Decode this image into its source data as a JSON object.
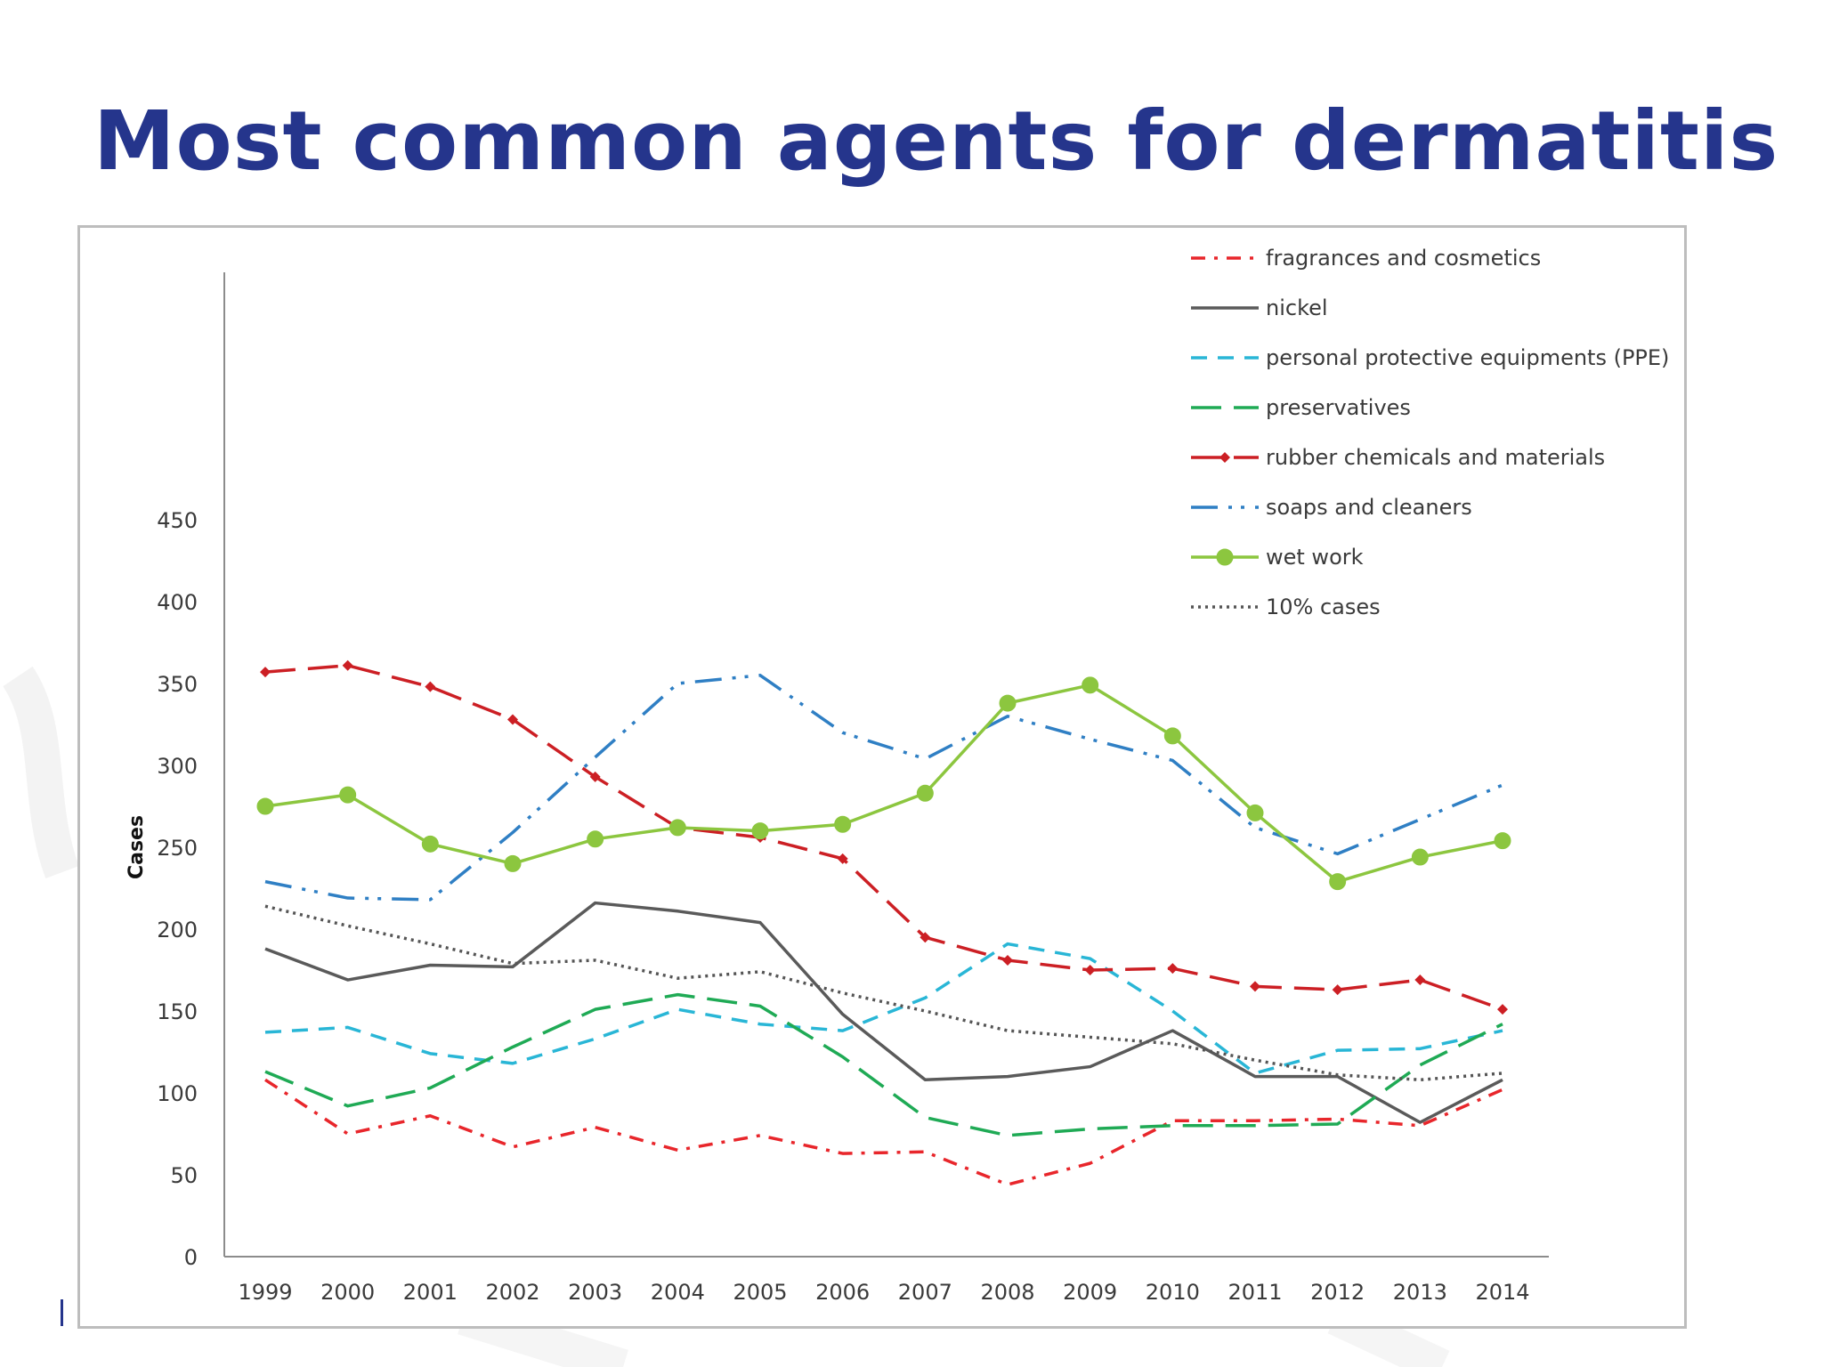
{
  "slide": {
    "title": "Most common agents for dermatitis"
  },
  "chart_data": {
    "type": "line",
    "title": "",
    "xlabel": "",
    "ylabel": "Cases",
    "ylim": [
      0,
      480
    ],
    "yticks": [
      0,
      50,
      100,
      150,
      200,
      250,
      300,
      350,
      400,
      450
    ],
    "grid": false,
    "legend_position": "top-right",
    "categories": [
      "1999",
      "2000",
      "2001",
      "2002",
      "2003",
      "2004",
      "2005",
      "2006",
      "2007",
      "2008",
      "2009",
      "2010",
      "2011",
      "2012",
      "2013",
      "2014"
    ],
    "series": [
      {
        "name": "fragrances and cosmetics",
        "color": "#e8262b",
        "style": "dash-dot",
        "marker": "none",
        "values": [
          108,
          75,
          86,
          67,
          79,
          65,
          74,
          63,
          64,
          44,
          57,
          83,
          83,
          84,
          80,
          102
        ]
      },
      {
        "name": "nickel",
        "color": "#5a5a5a",
        "style": "solid",
        "marker": "none",
        "values": [
          188,
          169,
          178,
          177,
          216,
          211,
          204,
          148,
          108,
          110,
          116,
          138,
          110,
          110,
          82,
          108
        ]
      },
      {
        "name": "personal protective equipments (PPE)",
        "color": "#29b6d6",
        "style": "dash",
        "marker": "none",
        "values": [
          137,
          140,
          124,
          118,
          133,
          151,
          142,
          138,
          158,
          191,
          182,
          150,
          112,
          126,
          127,
          138
        ]
      },
      {
        "name": "preservatives",
        "color": "#1faa55",
        "style": "long-dash",
        "marker": "none",
        "values": [
          113,
          92,
          103,
          128,
          151,
          160,
          153,
          122,
          85,
          74,
          78,
          80,
          80,
          81,
          117,
          142
        ]
      },
      {
        "name": "rubber chemicals and materials",
        "color": "#cc1f24",
        "style": "long-dash",
        "marker": "diamond",
        "values": [
          357,
          361,
          348,
          328,
          293,
          262,
          256,
          243,
          195,
          181,
          175,
          176,
          165,
          163,
          169,
          151
        ]
      },
      {
        "name": "soaps and cleaners",
        "color": "#2f7fc4",
        "style": "long-dash-dot-dot",
        "marker": "none",
        "values": [
          229,
          219,
          218,
          259,
          305,
          350,
          355,
          320,
          304,
          330,
          316,
          303,
          262,
          246,
          267,
          288
        ]
      },
      {
        "name": "wet work",
        "color": "#8cc63f",
        "style": "solid",
        "marker": "circle",
        "values": [
          275,
          282,
          252,
          240,
          255,
          262,
          260,
          264,
          283,
          338,
          349,
          318,
          271,
          229,
          244,
          254
        ]
      },
      {
        "name": "10% cases",
        "color": "#555555",
        "style": "dotted",
        "marker": "none",
        "values": [
          214,
          202,
          191,
          179,
          181,
          170,
          174,
          161,
          150,
          138,
          134,
          130,
          120,
          111,
          108,
          112
        ]
      }
    ]
  }
}
